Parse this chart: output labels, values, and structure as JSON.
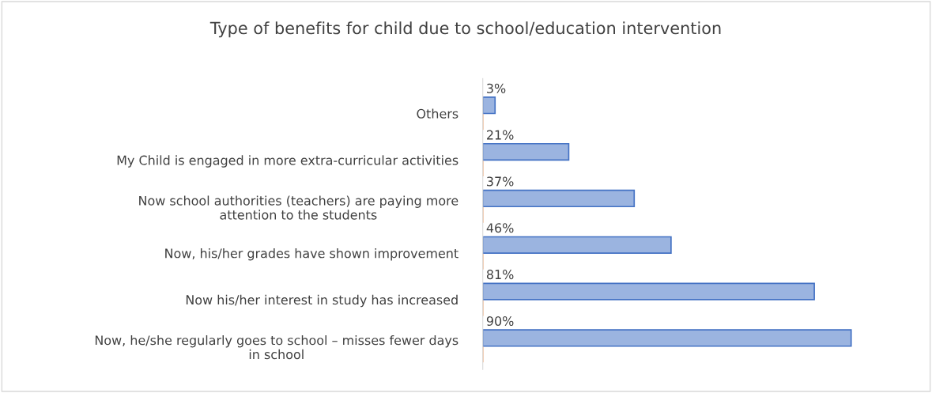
{
  "chart_data": {
    "type": "bar",
    "orientation": "horizontal",
    "title": "Type of benefits for child due to school/education intervention",
    "categories": [
      "Others",
      "My Child is engaged in more extra-curricular activities",
      "Now school authorities (teachers) are paying more\nattention to the students",
      "Now, his/her grades have shown improvement",
      "Now his/her interest in study has increased",
      "Now, he/she regularly goes to school – misses fewer days\nin school"
    ],
    "series": [
      {
        "color": "#ed7d31",
        "values": [
          0,
          0,
          0,
          0,
          0,
          0
        ]
      },
      {
        "color": "#4472c4",
        "values": [
          3,
          21,
          37,
          46,
          81,
          90
        ],
        "value_labels": [
          "3%",
          "21%",
          "37%",
          "46%",
          "81%",
          "90%"
        ]
      }
    ],
    "grid": false,
    "legend": false
  }
}
